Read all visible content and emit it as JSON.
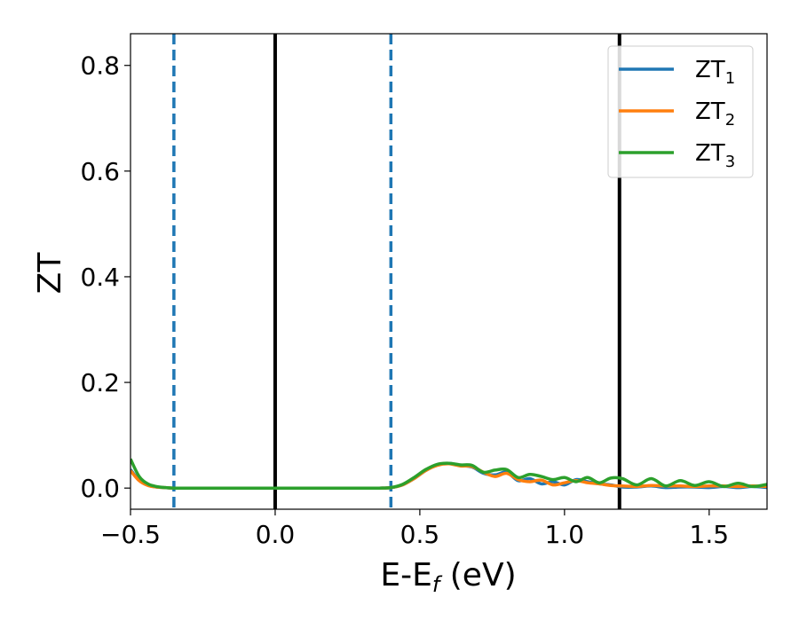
{
  "chart_data": {
    "type": "line",
    "title": "",
    "xlabel": {
      "main": "E-E",
      "sub": "f",
      "rest": " (eV)"
    },
    "ylabel": "ZT",
    "xlim": [
      -0.5,
      1.7
    ],
    "ylim": [
      -0.04,
      0.86
    ],
    "xticks": [
      -0.5,
      0.0,
      0.5,
      1.0,
      1.5
    ],
    "xtick_labels": [
      "−0.5",
      "0.0",
      "0.5",
      "1.0",
      "1.5"
    ],
    "yticks": [
      0.0,
      0.2,
      0.4,
      0.6,
      0.8
    ],
    "ytick_labels": [
      "0.0",
      "0.2",
      "0.4",
      "0.6",
      "0.8"
    ],
    "grid": false,
    "legend_position": "top-right",
    "vlines": [
      {
        "x": -0.35,
        "style": "dashed",
        "color": "#1f77b4"
      },
      {
        "x": 0.0,
        "style": "solid",
        "color": "#000000"
      },
      {
        "x": 0.4,
        "style": "dashed",
        "color": "#1f77b4"
      },
      {
        "x": 1.19,
        "style": "solid",
        "color": "#000000"
      }
    ],
    "series": [
      {
        "name": "ZT",
        "sub": "1",
        "color": "#1f77b4",
        "x": [
          -0.5,
          -0.47,
          -0.44,
          -0.41,
          -0.38,
          -0.35,
          -0.3,
          -0.2,
          -0.1,
          0.0,
          0.1,
          0.2,
          0.3,
          0.36,
          0.4,
          0.44,
          0.48,
          0.52,
          0.56,
          0.6,
          0.64,
          0.68,
          0.72,
          0.76,
          0.8,
          0.84,
          0.88,
          0.92,
          0.96,
          1.0,
          1.04,
          1.08,
          1.12,
          1.16,
          1.2,
          1.25,
          1.3,
          1.35,
          1.4,
          1.45,
          1.5,
          1.55,
          1.6,
          1.65,
          1.7
        ],
        "y": [
          0.035,
          0.015,
          0.006,
          0.002,
          0.001,
          0.0,
          0.0,
          0.0,
          0.0,
          0.0,
          0.0,
          0.0,
          0.0,
          0.0,
          0.001,
          0.006,
          0.018,
          0.033,
          0.044,
          0.047,
          0.043,
          0.04,
          0.028,
          0.025,
          0.03,
          0.014,
          0.018,
          0.008,
          0.012,
          0.006,
          0.016,
          0.012,
          0.008,
          0.006,
          0.002,
          0.002,
          0.004,
          0.001,
          0.002,
          0.002,
          0.001,
          0.003,
          0.001,
          0.003,
          0.001
        ]
      },
      {
        "name": "ZT",
        "sub": "2",
        "color": "#ff7f0e",
        "x": [
          -0.5,
          -0.47,
          -0.44,
          -0.41,
          -0.38,
          -0.35,
          -0.3,
          -0.2,
          -0.1,
          0.0,
          0.1,
          0.2,
          0.3,
          0.36,
          0.4,
          0.44,
          0.48,
          0.52,
          0.56,
          0.6,
          0.64,
          0.68,
          0.72,
          0.76,
          0.8,
          0.84,
          0.88,
          0.92,
          0.96,
          1.0,
          1.04,
          1.08,
          1.12,
          1.16,
          1.2,
          1.25,
          1.3,
          1.35,
          1.4,
          1.45,
          1.5,
          1.55,
          1.6,
          1.65,
          1.7
        ],
        "y": [
          0.033,
          0.014,
          0.005,
          0.002,
          0.001,
          0.0,
          0.0,
          0.0,
          0.0,
          0.0,
          0.0,
          0.0,
          0.0,
          0.0,
          0.001,
          0.006,
          0.018,
          0.033,
          0.043,
          0.046,
          0.042,
          0.041,
          0.03,
          0.022,
          0.028,
          0.016,
          0.012,
          0.015,
          0.006,
          0.01,
          0.014,
          0.01,
          0.008,
          0.005,
          0.004,
          0.003,
          0.005,
          0.004,
          0.004,
          0.003,
          0.004,
          0.004,
          0.003,
          0.004,
          0.003
        ]
      },
      {
        "name": "ZT",
        "sub": "3",
        "color": "#2ca02c",
        "x": [
          -0.5,
          -0.47,
          -0.44,
          -0.41,
          -0.38,
          -0.35,
          -0.3,
          -0.2,
          -0.1,
          0.0,
          0.1,
          0.2,
          0.3,
          0.36,
          0.4,
          0.44,
          0.48,
          0.52,
          0.56,
          0.6,
          0.64,
          0.68,
          0.72,
          0.76,
          0.8,
          0.84,
          0.88,
          0.92,
          0.96,
          1.0,
          1.04,
          1.08,
          1.12,
          1.16,
          1.2,
          1.25,
          1.3,
          1.35,
          1.4,
          1.45,
          1.5,
          1.55,
          1.6,
          1.65,
          1.7
        ],
        "y": [
          0.055,
          0.022,
          0.008,
          0.003,
          0.001,
          0.0,
          0.0,
          0.0,
          0.0,
          0.0,
          0.0,
          0.0,
          0.0,
          0.0,
          0.001,
          0.007,
          0.02,
          0.035,
          0.045,
          0.047,
          0.044,
          0.043,
          0.03,
          0.034,
          0.035,
          0.02,
          0.026,
          0.022,
          0.016,
          0.02,
          0.012,
          0.02,
          0.01,
          0.019,
          0.018,
          0.006,
          0.018,
          0.004,
          0.014,
          0.005,
          0.012,
          0.003,
          0.009,
          0.003,
          0.007
        ]
      }
    ]
  }
}
